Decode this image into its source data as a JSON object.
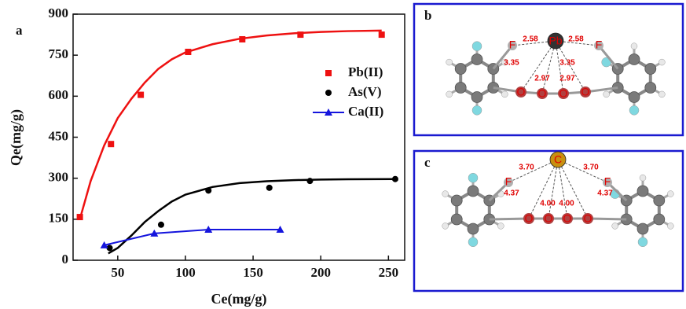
{
  "chart_data": {
    "type": "scatter",
    "panel_label": "a",
    "x_label": "Ce(mg/g)",
    "y_label": "Qe(mg/g)",
    "xlim": [
      17,
      262
    ],
    "xticks": [
      50,
      100,
      150,
      200,
      250
    ],
    "ylim": [
      0,
      900
    ],
    "yticks": [
      0,
      150,
      300,
      450,
      600,
      750,
      900
    ],
    "legend": "upper right",
    "series": [
      {
        "name": "Pb(II)",
        "color": "#ee1111",
        "marker": "square",
        "line": false,
        "x": [
          22,
          45,
          67,
          102,
          142,
          185,
          245
        ],
        "values": [
          158,
          425,
          605,
          762,
          808,
          825,
          825
        ],
        "fit": {
          "x": [
            22,
            30,
            40,
            50,
            60,
            70,
            80,
            90,
            100,
            120,
            140,
            160,
            180,
            200,
            220,
            245
          ],
          "values": [
            150,
            290,
            420,
            520,
            590,
            650,
            700,
            735,
            760,
            790,
            810,
            822,
            830,
            835,
            838,
            840
          ]
        }
      },
      {
        "name": "As(V)",
        "color": "#000000",
        "marker": "circle",
        "line": false,
        "x": [
          44,
          82,
          117,
          162,
          192,
          255
        ],
        "values": [
          45,
          130,
          255,
          265,
          290,
          297
        ],
        "fit": {
          "x": [
            43,
            50,
            60,
            70,
            80,
            90,
            100,
            120,
            140,
            160,
            180,
            200,
            220,
            255
          ],
          "values": [
            25,
            45,
            90,
            140,
            180,
            215,
            240,
            268,
            282,
            289,
            293,
            295,
            296,
            297
          ]
        }
      },
      {
        "name": "Ca(II)",
        "color": "#1515dd",
        "marker": "triangle",
        "line": true,
        "x": [
          40,
          77,
          117,
          170
        ],
        "values": [
          55,
          98,
          112,
          112
        ]
      }
    ]
  },
  "panels": [
    {
      "label": "b",
      "metal": "Pb",
      "ligand_left": "F",
      "ligand_right": "F",
      "oxygens": [
        "O",
        "O",
        "O",
        "O"
      ],
      "distances": [
        "2.58",
        "2.58",
        "3.35",
        "3.35",
        "2.97",
        "2.97"
      ]
    },
    {
      "label": "c",
      "metal": "C",
      "ligand_left": "F",
      "ligand_right": "F",
      "oxygens": [
        "O",
        "O",
        "O",
        "O"
      ],
      "distances": [
        "3.70",
        "3.70",
        "4.37",
        "4.37",
        "4.00",
        "4.00"
      ]
    }
  ]
}
